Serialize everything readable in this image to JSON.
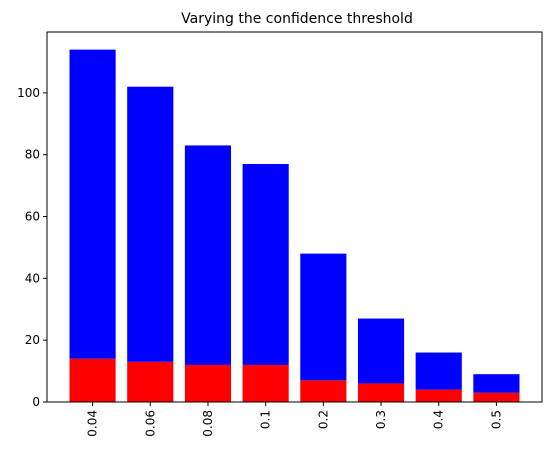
{
  "chart_data": {
    "type": "bar",
    "stacked": true,
    "title": "Varying the confidence threshold",
    "xlabel": "",
    "ylabel": "",
    "categories": [
      "0.04",
      "0.06",
      "0.08",
      "0.1",
      "0.2",
      "0.3",
      "0.4",
      "0.5"
    ],
    "series": [
      {
        "color": "#ff0000",
        "values": [
          14,
          13,
          12,
          12,
          7,
          6,
          4,
          3
        ]
      },
      {
        "color": "#0000ff",
        "values": [
          100,
          89,
          71,
          65,
          41,
          21,
          12,
          6
        ]
      }
    ],
    "ylim": [
      0,
      119.7
    ],
    "yticks": [
      0,
      20,
      40,
      60,
      80,
      100
    ],
    "xtick_rotation": 90,
    "grid": false,
    "legend": "none"
  }
}
